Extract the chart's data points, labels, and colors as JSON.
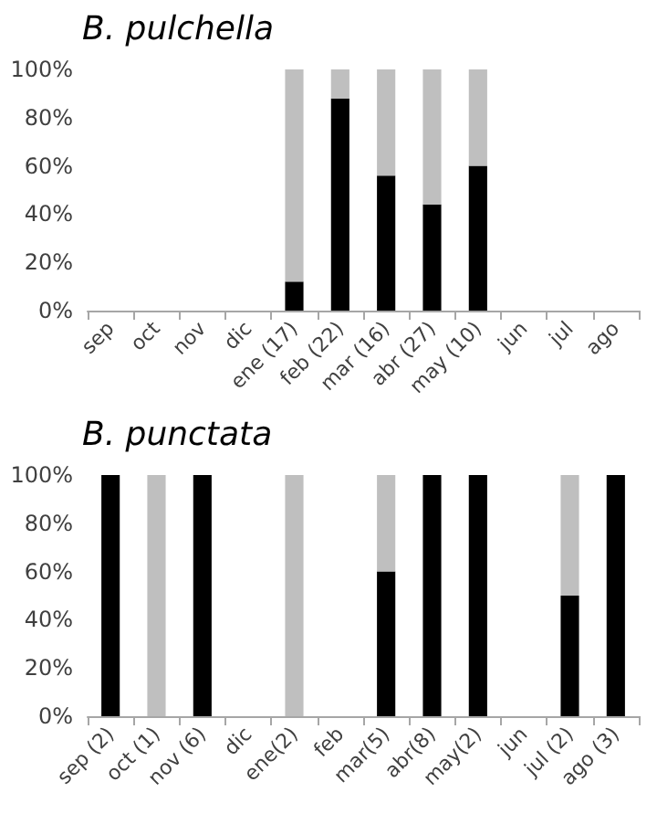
{
  "chart_data": [
    {
      "type": "bar",
      "title": "B. pulchella",
      "stacked": true,
      "categories": [
        "sep",
        "oct",
        "nov",
        "dic",
        "ene (17)",
        "feb (22)",
        "mar (16)",
        "abr (27)",
        "may (10)",
        "jun",
        "jul",
        "ago"
      ],
      "series": [
        {
          "color": "#000000",
          "values": [
            null,
            null,
            null,
            null,
            12,
            88,
            56,
            44,
            60,
            null,
            null,
            null
          ]
        },
        {
          "color": "#bfbfbf",
          "values": [
            null,
            null,
            null,
            null,
            88,
            12,
            44,
            56,
            40,
            null,
            null,
            null
          ]
        }
      ],
      "ylim": [
        0,
        100
      ],
      "yticks": [
        {
          "value": 0,
          "label": "0%"
        },
        {
          "value": 20,
          "label": "20%"
        },
        {
          "value": 40,
          "label": "40%"
        },
        {
          "value": 60,
          "label": "60%"
        },
        {
          "value": 80,
          "label": "80%"
        },
        {
          "value": 100,
          "label": "100%"
        }
      ]
    },
    {
      "type": "bar",
      "title": "B. punctata",
      "stacked": true,
      "categories": [
        "sep (2)",
        "oct (1)",
        "nov (6)",
        "dic",
        "ene(2)",
        "feb",
        "mar(5)",
        "abr(8)",
        "may(2)",
        "jun",
        "jul (2)",
        "ago (3)"
      ],
      "series": [
        {
          "color": "#000000",
          "values": [
            100,
            0,
            100,
            null,
            0,
            null,
            60,
            100,
            100,
            null,
            50,
            100
          ]
        },
        {
          "color": "#bfbfbf",
          "values": [
            0,
            100,
            0,
            null,
            100,
            null,
            40,
            0,
            0,
            null,
            50,
            0
          ]
        }
      ],
      "ylim": [
        0,
        100
      ],
      "yticks": [
        {
          "value": 0,
          "label": "0%"
        },
        {
          "value": 20,
          "label": "20%"
        },
        {
          "value": 40,
          "label": "40%"
        },
        {
          "value": 60,
          "label": "60%"
        },
        {
          "value": 80,
          "label": "80%"
        },
        {
          "value": 100,
          "label": "100%"
        }
      ]
    }
  ]
}
